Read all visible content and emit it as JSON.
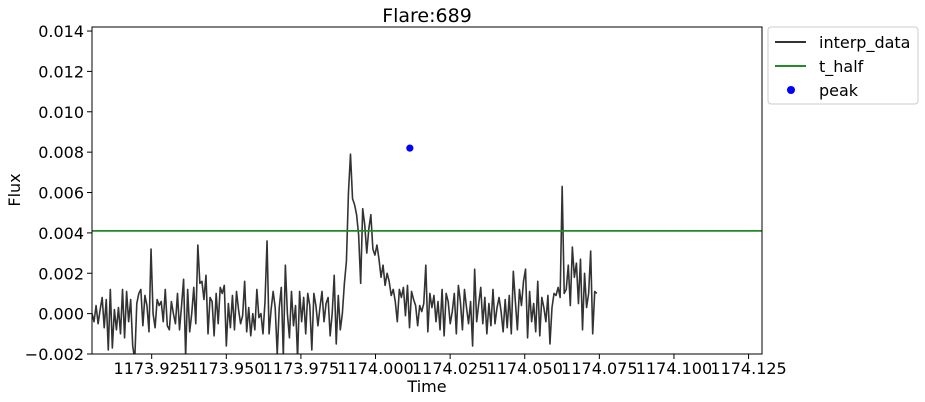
{
  "chart_data": {
    "type": "line",
    "title": "Flare:689",
    "xlabel": "Time",
    "ylabel": "Flux",
    "xlim": [
      1173.905,
      1174.1295
    ],
    "ylim": [
      -0.002,
      0.0142
    ],
    "xticks": [
      1173.925,
      1173.95,
      1173.975,
      1174.0,
      1174.025,
      1174.05,
      1174.075,
      1174.1,
      1174.125
    ],
    "xtick_labels": [
      "1173.925",
      "1173.950",
      "1173.975",
      "1174.000",
      "1174.025",
      "1174.050",
      "1174.075",
      "1174.100",
      "1174.125"
    ],
    "yticks": [
      -0.002,
      0.0,
      0.002,
      0.004,
      0.006,
      0.008,
      0.01,
      0.012,
      0.014
    ],
    "ytick_labels": [
      "−0.002",
      "0.000",
      "0.002",
      "0.004",
      "0.006",
      "0.008",
      "0.010",
      "0.012",
      "0.014"
    ],
    "grid": false,
    "legend": {
      "placement": "outside-top-right"
    },
    "series": [
      {
        "name": "interp_data",
        "kind": "line",
        "color": "#333333",
        "x_start": 1173.905,
        "x_step": 0.000682,
        "values": [
          0.0,
          -0.0004,
          0.0004,
          -0.0005,
          0.0002,
          0.0008,
          -0.0007,
          0.0007,
          -0.0018,
          0.0012,
          -0.0017,
          0.0002,
          -0.0008,
          0.0003,
          -0.001,
          0.0012,
          -0.0012,
          0.0011,
          -0.0004,
          0.0007,
          -0.0016,
          -0.0023,
          0.0005,
          0.001,
          0.0012,
          -0.0006,
          0.0009,
          0.0004,
          -0.0009,
          0.0032,
          0.0,
          -0.0007,
          0.0007,
          0.0004,
          0.0006,
          -0.0004,
          0.0012,
          -0.0006,
          -0.0008,
          0.0006,
          0.0,
          -0.0005,
          0.001,
          -0.0008,
          0.0004,
          0.0017,
          -0.0021,
          0.0012,
          -0.0009,
          0.0,
          0.0013,
          -0.0005,
          0.0034,
          0.0015,
          0.0016,
          0.0007,
          0.0019,
          -0.001,
          0.0008,
          0.0006,
          -0.0011,
          0.001,
          -0.0005,
          0.0013,
          0.001,
          0.0014,
          -0.0016,
          0.0005,
          -0.0007,
          0.0009,
          -0.0008,
          0.0011,
          0.0002,
          -0.0005,
          -0.0001,
          0.0016,
          -0.0009,
          0.0003,
          -0.0011,
          0.0,
          -0.0008,
          0.0012,
          -0.0002,
          0.0,
          -0.001,
          0.0006,
          0.0036,
          -0.001,
          0.0002,
          0.0011,
          0.0003,
          -0.002,
          0.0003,
          0.0013,
          -0.0021,
          0.0024,
          0.0,
          -0.0012,
          0.0011,
          -0.0006,
          0.0004,
          -0.0022,
          0.0011,
          -0.0004,
          0.0008,
          -0.001,
          0.001,
          0.0004,
          -0.0018,
          0.001,
          0.0004,
          -0.0006,
          0.0003,
          0.0011,
          -0.0004,
          0.0005,
          0.0008,
          -0.0011,
          0.0,
          0.0019,
          -0.0015,
          0.0009,
          -0.0008,
          0.0,
          0.0015,
          0.0026,
          0.006,
          0.0079,
          0.0057,
          0.0054,
          0.0049,
          0.0039,
          0.0015,
          0.0052,
          0.0044,
          0.003,
          0.0042,
          0.0049,
          0.0032,
          0.0029,
          0.0034,
          0.0027,
          0.0018,
          0.0024,
          0.0014,
          0.002,
          0.0016,
          0.0009,
          0.0012,
          0.0006,
          -0.0004,
          0.0012,
          0.0008,
          0.0013,
          -0.0001,
          0.0014,
          -0.0007,
          0.0011,
          0.0007,
          0.0004,
          -0.0006,
          0.0004,
          0.0001,
          0.0005,
          0.0024,
          -0.0009,
          0.001,
          0.0003,
          0.0009,
          -0.0004,
          0.0006,
          -0.0008,
          0.0012,
          -0.0011,
          0.001,
          0.0006,
          -0.0005,
          0.0001,
          0.001,
          -0.001,
          0.0014,
          0.0006,
          -0.0008,
          0.0012,
          0.0003,
          -0.0005,
          0.0006,
          -0.0016,
          0.0022,
          -0.0004,
          0.0005,
          0.0013,
          -0.0005,
          0.0008,
          -0.001,
          0.0005,
          -0.0006,
          0.0012,
          -0.0005,
          0.0003,
          0.0008,
          0.0001,
          -0.0009,
          0.0007,
          -0.0007,
          0.0009,
          -0.001,
          0.0021,
          0.0006,
          -0.0008,
          0.0012,
          0.0004,
          0.0016,
          0.0022,
          -0.0012,
          0.0011,
          -0.0004,
          0.0005,
          -0.0009,
          0.0016,
          -0.0011,
          0.0008,
          0.0003,
          -0.0004,
          0.0009,
          -0.0015,
          0.0003,
          0.001,
          0.0009,
          0.0013,
          0.0008,
          0.0063,
          0.001,
          0.0012,
          0.0024,
          0.0004,
          0.0033,
          0.0018,
          0.0025,
          0.0005,
          0.0027,
          -0.0008,
          0.002,
          0.0003,
          0.001,
          0.0031,
          -0.001,
          0.0011,
          0.001
        ]
      },
      {
        "name": "t_half",
        "kind": "hline",
        "color": "#228b22",
        "y": 0.0041
      },
      {
        "name": "peak",
        "kind": "scatter",
        "color": "#0000ff",
        "points": [
          {
            "x": 1174.0115,
            "y": 0.0082
          }
        ]
      }
    ]
  }
}
